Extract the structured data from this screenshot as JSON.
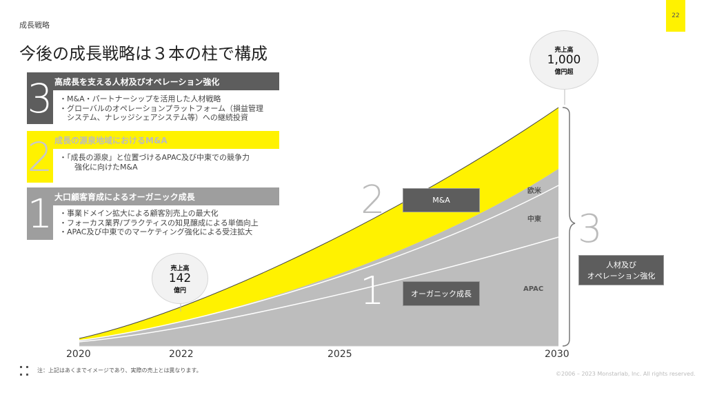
{
  "page_number": "22",
  "section_label": "成長戦略",
  "title": "今後の成長戦略は３本の柱で構成",
  "pillars": [
    {
      "number": "3",
      "heading": "高成長を支える人材及びオペレーション強化",
      "bullets": [
        "・M&A・パートナーシップを活用した人材戦略",
        "・グローバルのオペレーションプラットフォーム（損益管理",
        "　システム、ナレッジシェアシステム等）への継続投資"
      ]
    },
    {
      "number": "2",
      "heading": "成長の源泉地域におけるM&A",
      "bullets": [
        "・「成長の源泉」と位置づけるAPAC及び中東での競争力",
        "　　強化に向けたM&A"
      ]
    },
    {
      "number": "1",
      "heading": "大口顧客育成によるオーガニック成長",
      "bullets": [
        "・事業ドメイン拡大による顧客別売上の最大化",
        "・フォーカス業界/プラクティスの知見醸成による単価向上",
        "・APAC及び中東でのマーケティング強化による受注拡大"
      ]
    }
  ],
  "milestones": {
    "start": {
      "label": "売上高",
      "value": "142",
      "unit": "億円"
    },
    "end": {
      "label": "売上高",
      "value": "1,000",
      "unit": "億円超"
    }
  },
  "chart_labels": {
    "ma_number": "2",
    "ma_label": "M&A",
    "organic_number": "1",
    "organic_label": "オーガニック成長",
    "talent_number": "3",
    "talent_label_line1": "人材及び",
    "talent_label_line2": "オペレーション強化",
    "regions": [
      "欧米",
      "中東",
      "APAC"
    ]
  },
  "x_axis": [
    "2020",
    "2022",
    "2025",
    "2030"
  ],
  "note": "注：上記はあくまでイメージであり、実際の売上とは異なります。",
  "copyright": "©2006 – 2023 Monstarlab, Inc. All rights reserved.",
  "colors": {
    "accent_yellow": "#fff200",
    "dark_gray": "#5d5d5d",
    "mid_gray": "#9e9e9e",
    "area_gray": "#bdbdbd"
  }
}
